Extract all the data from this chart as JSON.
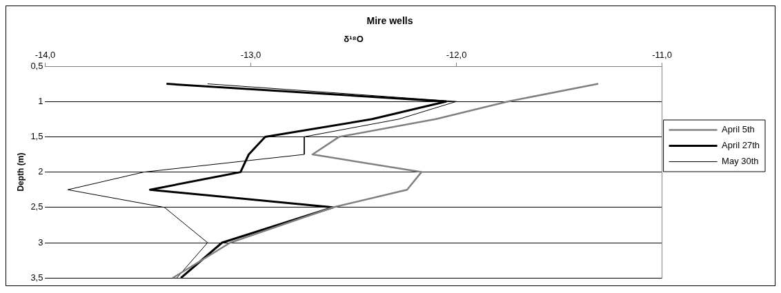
{
  "chart_data": {
    "type": "line",
    "title": "Mire wells",
    "xlabel": "δ¹⁸O",
    "ylabel": "Depth (m)",
    "xlim": [
      -14,
      -11
    ],
    "xticks": [
      {
        "value": -14,
        "label": "-14,0"
      },
      {
        "value": -13,
        "label": "-13,0"
      },
      {
        "value": -12,
        "label": "-12,0"
      },
      {
        "value": -11,
        "label": "-11,0"
      }
    ],
    "ylim": [
      3.5,
      0.5
    ],
    "yticks": [
      {
        "value": 0.5,
        "label": "0,5"
      },
      1,
      {
        "value": 1.5,
        "label": "1,5"
      },
      2,
      {
        "value": 2.5,
        "label": "2,5"
      },
      3,
      {
        "value": 3.5,
        "label": "3,5"
      }
    ],
    "grid": "y",
    "legend": "right",
    "marker": "none",
    "line_style": "solid",
    "series": [
      {
        "name": "April 5th",
        "color": "#808080",
        "x": [
          -11.31,
          -11.75,
          -12.1,
          -12.57,
          -12.7,
          -12.17,
          -12.24,
          -12.6,
          -13.1,
          -13.38
        ],
        "values": [
          0.75,
          1,
          1.25,
          1.5,
          1.75,
          2,
          2.25,
          2.5,
          3,
          3.5
        ]
      },
      {
        "name": "April 27th",
        "color": "#000000",
        "x": [
          -13.41,
          -12.05,
          -12.41,
          -12.93,
          -13.01,
          -13.05,
          -13.49,
          -12.6,
          -13.14,
          -13.34
        ],
        "values": [
          0.75,
          1,
          1.25,
          1.5,
          1.75,
          2,
          2.25,
          2.5,
          3,
          3.5
        ]
      },
      {
        "name": "May 30th",
        "color": "#000000",
        "x": [
          -13.21,
          -12.0,
          -12.28,
          -12.74,
          -12.74,
          -13.52,
          -13.89,
          -13.42,
          -13.21,
          -13.36
        ],
        "values": [
          0.75,
          1,
          1.25,
          1.5,
          1.75,
          2,
          2.25,
          2.5,
          3,
          3.5
        ]
      }
    ]
  }
}
